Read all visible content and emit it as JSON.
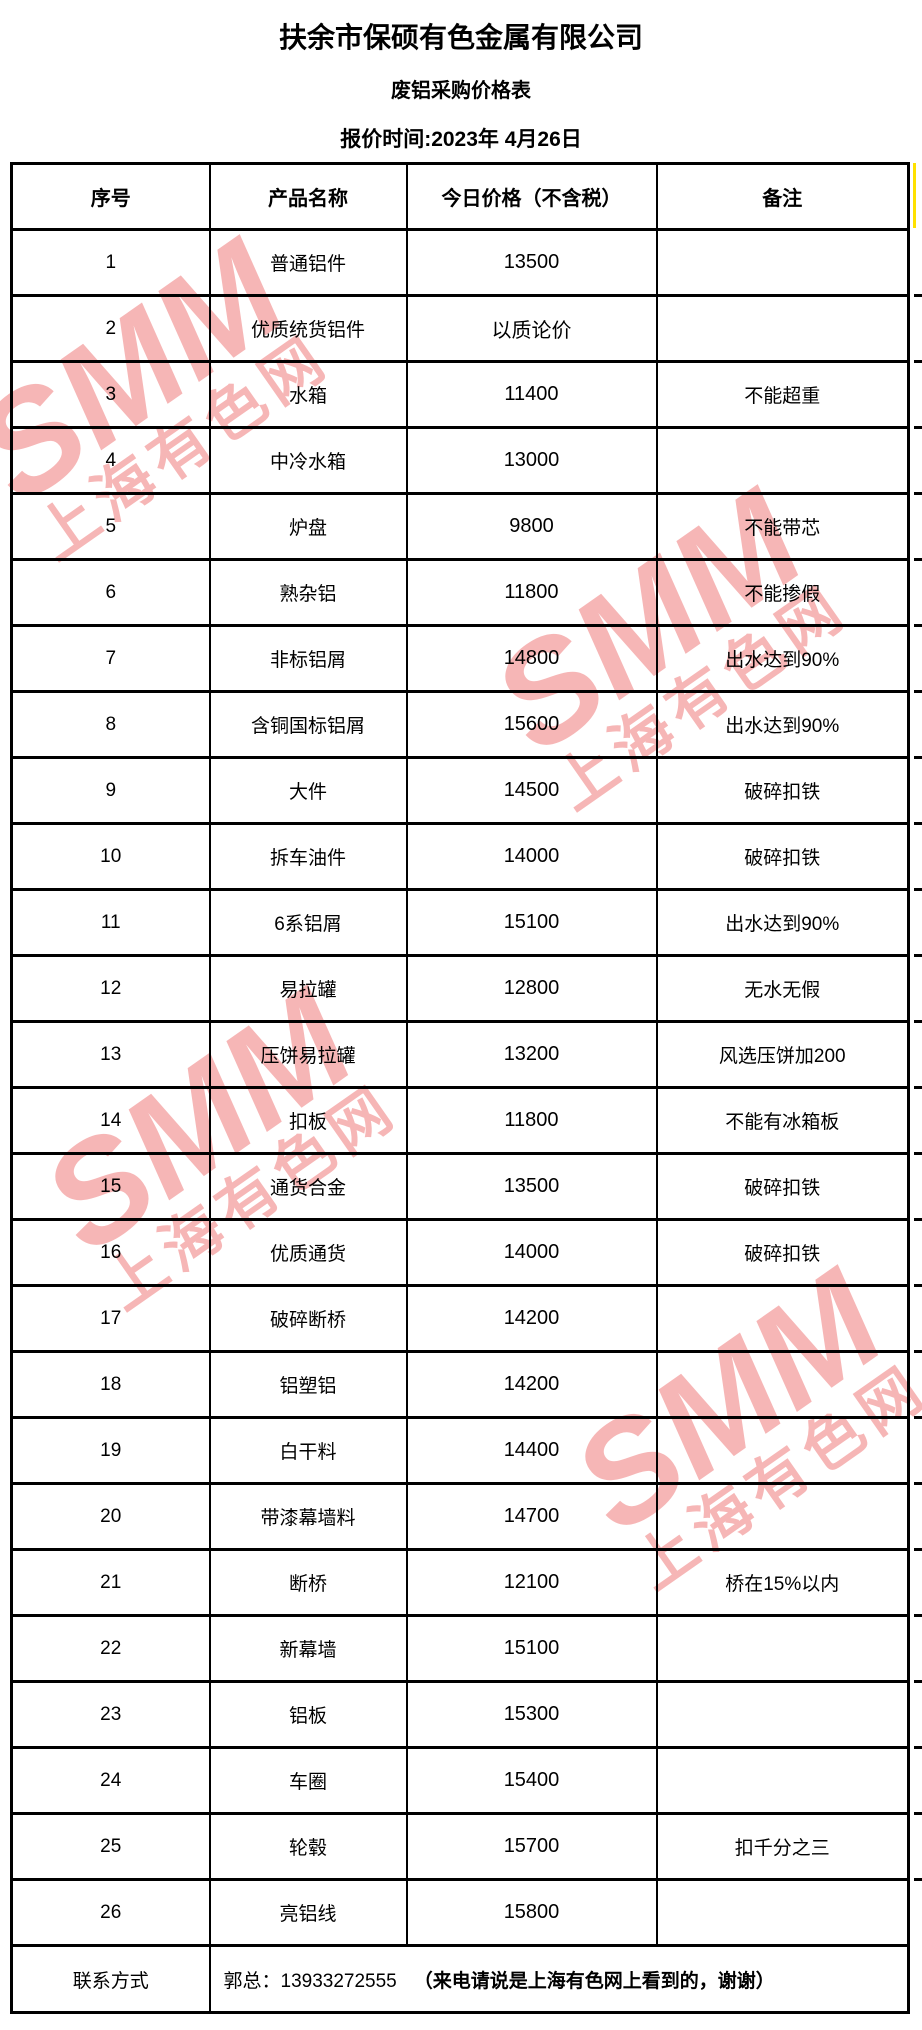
{
  "header": {
    "company": "扶余市保硕有色金属有限公司",
    "subtitle": "废铝采购价格表",
    "date_line": "报价时间:2023年 4月26日"
  },
  "watermark": {
    "brand": "SMM",
    "site": "上海有色网",
    "color": "#ee6f6f"
  },
  "decorations": {
    "highlight_color": "#ffe100"
  },
  "table": {
    "headers": [
      "序号",
      "产品名称",
      "今日价格（不含税）",
      "备注"
    ],
    "rows": [
      [
        "1",
        "普通铝件",
        "13500",
        ""
      ],
      [
        "2",
        "优质统货铝件",
        "以质论价",
        ""
      ],
      [
        "3",
        "水箱",
        "11400",
        "不能超重"
      ],
      [
        "4",
        "中冷水箱",
        "13000",
        ""
      ],
      [
        "5",
        "炉盘",
        "9800",
        "不能带芯"
      ],
      [
        "6",
        "熟杂铝",
        "11800",
        "不能掺假"
      ],
      [
        "7",
        "非标铝屑",
        "14800",
        "出水达到90%"
      ],
      [
        "8",
        "含铜国标铝屑",
        "15600",
        "出水达到90%"
      ],
      [
        "9",
        "大件",
        "14500",
        "破碎扣铁"
      ],
      [
        "10",
        "拆车油件",
        "14000",
        "破碎扣铁"
      ],
      [
        "11",
        "6系铝屑",
        "15100",
        "出水达到90%"
      ],
      [
        "12",
        "易拉罐",
        "12800",
        "无水无假"
      ],
      [
        "13",
        "压饼易拉罐",
        "13200",
        "风选压饼加200"
      ],
      [
        "14",
        "扣板",
        "11800",
        "不能有冰箱板"
      ],
      [
        "15",
        "通货合金",
        "13500",
        "破碎扣铁"
      ],
      [
        "16",
        "优质通货",
        "14000",
        "破碎扣铁"
      ],
      [
        "17",
        "破碎断桥",
        "14200",
        ""
      ],
      [
        "18",
        "铝塑铝",
        "14200",
        ""
      ],
      [
        "19",
        "白干料",
        "14400",
        ""
      ],
      [
        "20",
        "带漆幕墙料",
        "14700",
        ""
      ],
      [
        "21",
        "断桥",
        "12100",
        "桥在15%以内"
      ],
      [
        "22",
        "新幕墙",
        "15100",
        ""
      ],
      [
        "23",
        "铝板",
        "15300",
        ""
      ],
      [
        "24",
        "车圈",
        "15400",
        ""
      ],
      [
        "25",
        "轮毂",
        "15700",
        "扣千分之三"
      ],
      [
        "26",
        "亮铝线",
        "15800",
        ""
      ]
    ],
    "contact": {
      "label": "联系方式",
      "phone": "郭总：13933272555",
      "note_bold": "（来电请说是上海有色网上看到的，谢谢）"
    }
  }
}
